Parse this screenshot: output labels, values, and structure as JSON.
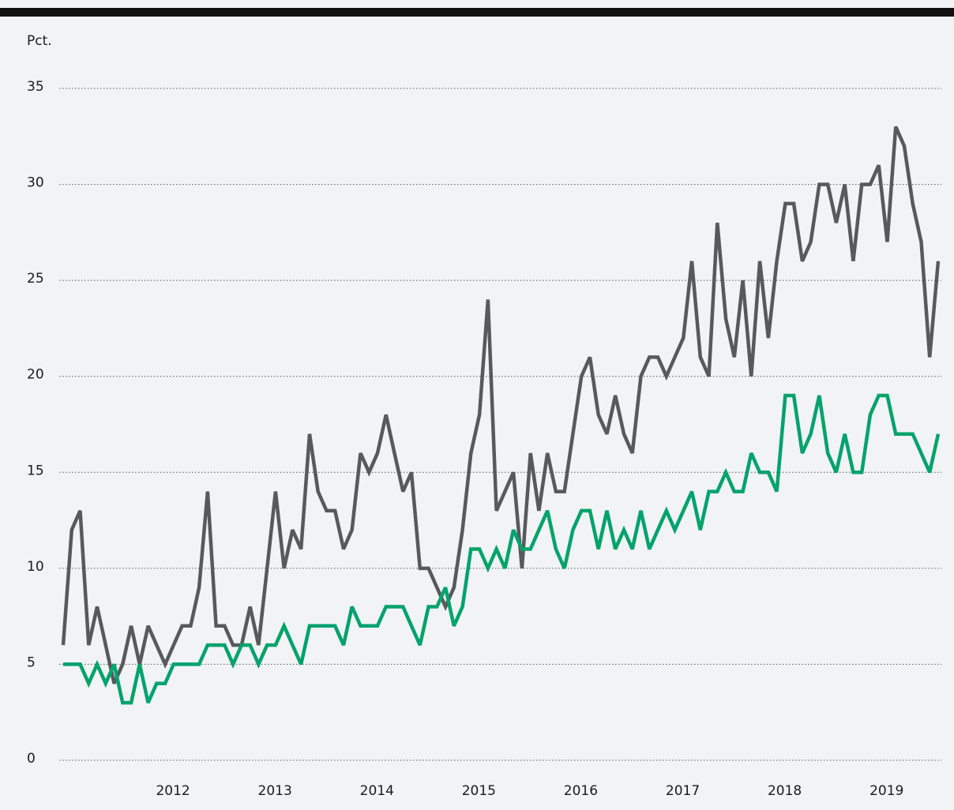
{
  "chart_data": {
    "type": "line",
    "y_label": "Pct.",
    "categories": [
      null,
      null,
      null,
      null,
      null,
      null,
      null,
      null,
      null,
      null,
      null,
      null,
      "2012",
      null,
      null,
      null,
      null,
      null,
      null,
      null,
      null,
      null,
      null,
      null,
      "2013",
      null,
      null,
      null,
      null,
      null,
      null,
      null,
      null,
      null,
      null,
      null,
      "2014",
      null,
      null,
      null,
      null,
      null,
      null,
      null,
      null,
      null,
      null,
      null,
      "2015",
      null,
      null,
      null,
      null,
      null,
      null,
      null,
      null,
      null,
      null,
      null,
      "2016",
      null,
      null,
      null,
      null,
      null,
      null,
      null,
      null,
      null,
      null,
      null,
      "2017",
      null,
      null,
      null,
      null,
      null,
      null,
      null,
      null,
      null,
      null,
      null,
      "2018",
      null,
      null,
      null,
      null,
      null,
      null,
      null,
      null,
      null,
      null,
      null,
      "2019",
      null,
      null,
      null,
      null,
      null,
      null,
      null
    ],
    "series": [
      {
        "color": "#58595b",
        "values": [
          6,
          12,
          13,
          6,
          8,
          6,
          4,
          5,
          7,
          5,
          7,
          6,
          5,
          6,
          7,
          7,
          9,
          14,
          7,
          7,
          6,
          6,
          8,
          6,
          10,
          14,
          10,
          12,
          11,
          17,
          14,
          13,
          13,
          11,
          12,
          16,
          15,
          16,
          18,
          16,
          14,
          15,
          10,
          10,
          9,
          8,
          9,
          12,
          16,
          18,
          24,
          13,
          14,
          15,
          10,
          16,
          13,
          16,
          14,
          14,
          17,
          20,
          21,
          18,
          17,
          19,
          17,
          16,
          20,
          21,
          21,
          20,
          21,
          22,
          26,
          21,
          20,
          28,
          23,
          21,
          25,
          20,
          26,
          22,
          26,
          29,
          29,
          26,
          27,
          30,
          30,
          28,
          30,
          26,
          30,
          30,
          31,
          27,
          33,
          32,
          29,
          27,
          21,
          26
        ]
      },
      {
        "color": "#00a36c",
        "values": [
          5,
          5,
          5,
          4,
          5,
          4,
          5,
          3,
          3,
          5,
          3,
          4,
          4,
          5,
          5,
          5,
          5,
          6,
          6,
          6,
          5,
          6,
          6,
          5,
          6,
          6,
          7,
          6,
          5,
          7,
          7,
          7,
          7,
          6,
          8,
          7,
          7,
          7,
          8,
          8,
          8,
          7,
          6,
          8,
          8,
          9,
          7,
          8,
          11,
          11,
          10,
          11,
          10,
          12,
          11,
          11,
          12,
          13,
          11,
          10,
          12,
          13,
          13,
          11,
          13,
          11,
          12,
          11,
          13,
          11,
          12,
          13,
          12,
          13,
          14,
          12,
          14,
          14,
          15,
          14,
          14,
          16,
          15,
          15,
          14,
          19,
          19,
          16,
          17,
          19,
          16,
          15,
          17,
          15,
          15,
          18,
          19,
          19,
          17,
          17,
          17,
          16,
          15,
          17
        ]
      }
    ],
    "ylim": [
      0,
      35
    ],
    "yticks": [
      0,
      5,
      10,
      15,
      20,
      25,
      30,
      35
    ],
    "grid": true
  }
}
